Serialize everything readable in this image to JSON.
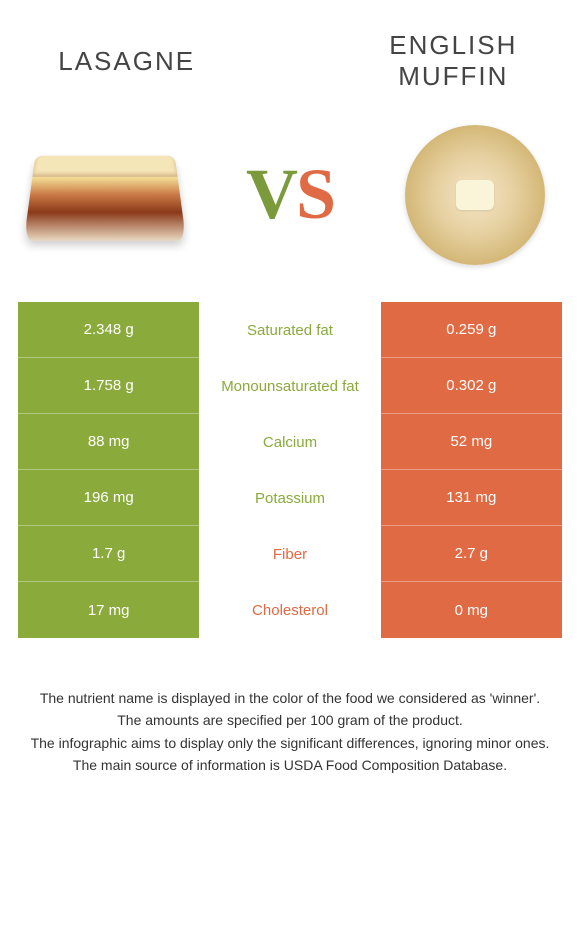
{
  "colors": {
    "left_bg": "#8aaa3b",
    "right_bg": "#e06a44",
    "mid_bg": "#ffffff",
    "title_color": "#444444",
    "footer_color": "#333333"
  },
  "foods": {
    "left": {
      "name": "LASAGNE"
    },
    "right": {
      "name": "ENGLISH MUFFIN"
    }
  },
  "vs_label": {
    "v": "V",
    "s": "S"
  },
  "nutrients": [
    {
      "label": "Saturated fat",
      "left": "2.348 g",
      "right": "0.259 g",
      "winner": "left"
    },
    {
      "label": "Monounsaturated fat",
      "left": "1.758 g",
      "right": "0.302 g",
      "winner": "left"
    },
    {
      "label": "Calcium",
      "left": "88 mg",
      "right": "52 mg",
      "winner": "left"
    },
    {
      "label": "Potassium",
      "left": "196 mg",
      "right": "131 mg",
      "winner": "left"
    },
    {
      "label": "Fiber",
      "left": "1.7 g",
      "right": "2.7 g",
      "winner": "right"
    },
    {
      "label": "Cholesterol",
      "left": "17 mg",
      "right": "0 mg",
      "winner": "right"
    }
  ],
  "footer_lines": [
    "The nutrient name is displayed in the color of the food we considered as 'winner'.",
    "The amounts are specified per 100 gram of the product.",
    "The infographic aims to display only the significant differences, ignoring minor ones.",
    "The main source of information is USDA Food Composition Database."
  ]
}
